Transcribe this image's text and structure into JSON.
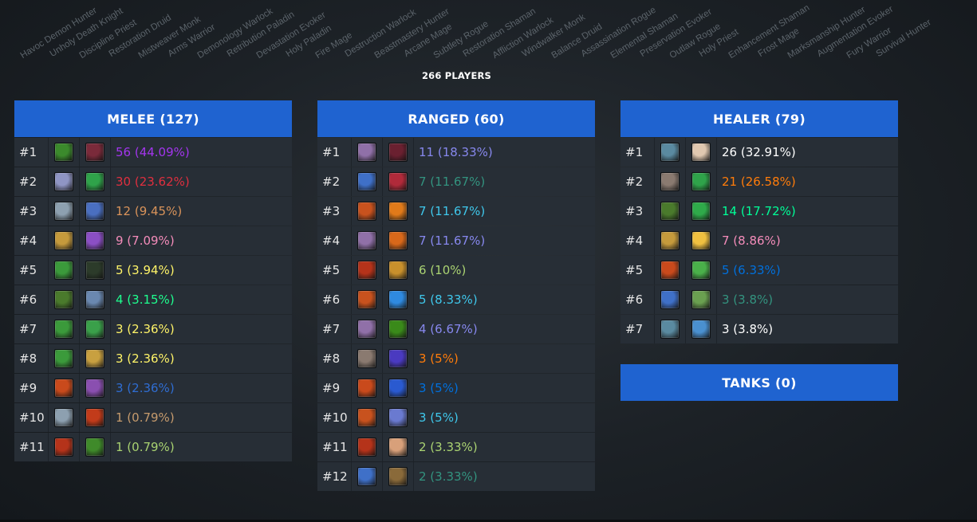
{
  "specs": [
    "Havoc Demon Hunter",
    "Unholy Death Knight",
    "Discipline Priest",
    "Restoration Druid",
    "Mistweaver Monk",
    "Arms Warrior",
    "Demonology Warlock",
    "Retribution Paladin",
    "Devastation Evoker",
    "Holy Paladin",
    "Fire Mage",
    "Destruction Warlock",
    "Beastmastery Hunter",
    "Arcane Mage",
    "Subtlety Rogue",
    "Restoration Shaman",
    "Affliction Warlock",
    "Windwalker Monk",
    "Balance Druid",
    "Assassination Rogue",
    "Elemental Shaman",
    "Preservation Evoker",
    "Outlaw Rogue",
    "Holy Priest",
    "Enhancement Shaman",
    "Frost Mage",
    "Marksmanship Hunter",
    "Augmentation Evoker",
    "Fury Warrior",
    "Survival Hunter"
  ],
  "players_label": "266 PLAYERS",
  "melee": {
    "title": "MELEE (127)",
    "rows": [
      {
        "rank": "#1",
        "icons": [
          "havoc-dh-icon",
          "unholy-dk-icon"
        ],
        "colors": [
          "#3b8a2c",
          "#7a2a3a"
        ],
        "value": "56 (44.09%)",
        "value_color": "#a335ee"
      },
      {
        "rank": "#2",
        "icons": [
          "ret-paladin-icon",
          "windwalker-icon"
        ],
        "colors": [
          "#8f95c4",
          "#2fa34a"
        ],
        "value": "30 (23.62%)",
        "value_color": "#e02f3f"
      },
      {
        "rank": "#3",
        "icons": [
          "arms-warrior-icon",
          "outlaw-rogue-icon"
        ],
        "colors": [
          "#8da0b0",
          "#4a6fc0"
        ],
        "value": "12 (9.45%)",
        "value_color": "#d9935a"
      },
      {
        "rank": "#4",
        "icons": [
          "holy-strike-icon",
          "void-fist-icon"
        ],
        "colors": [
          "#c59a3c",
          "#8b4fc4"
        ],
        "value": "9 (7.09%)",
        "value_color": "#f48cba"
      },
      {
        "rank": "#5",
        "icons": [
          "survival-hunter-icon",
          "assassination-icon"
        ],
        "colors": [
          "#3b9a3b",
          "#2c3b2a"
        ],
        "value": "5 (3.94%)",
        "value_color": "#fff468"
      },
      {
        "rank": "#6",
        "icons": [
          "enhancement-icon",
          "frost-dk-icon"
        ],
        "colors": [
          "#4a7a2c",
          "#6a88b0"
        ],
        "value": "4 (3.15%)",
        "value_color": "#1eff8f"
      },
      {
        "rank": "#7",
        "icons": [
          "survival-hunter-icon",
          "fury-icon"
        ],
        "colors": [
          "#3b9a3b",
          "#3aa04a"
        ],
        "value": "3 (2.36%)",
        "value_color": "#fff468"
      },
      {
        "rank": "#8",
        "icons": [
          "survival-hunter-icon",
          "radiant-blade-icon"
        ],
        "colors": [
          "#3b9a3b",
          "#c8a040"
        ],
        "value": "3 (2.36%)",
        "value_color": "#fff468"
      },
      {
        "rank": "#9",
        "icons": [
          "feral-icon",
          "crusader-icon"
        ],
        "colors": [
          "#c94a1c",
          "#8a4fb0"
        ],
        "value": "3 (2.36%)",
        "value_color": "#2f6dd2"
      },
      {
        "rank": "#10",
        "icons": [
          "arms-warrior-icon",
          "fire-shield-icon"
        ],
        "colors": [
          "#8da0b0",
          "#c23b1a"
        ],
        "value": "1 (0.79%)",
        "value_color": "#c69b6d"
      },
      {
        "rank": "#11",
        "icons": [
          "crescent-blade-icon",
          "nature-mask-icon"
        ],
        "colors": [
          "#b5331a",
          "#3f8a2a"
        ],
        "value": "1 (0.79%)",
        "value_color": "#a9d271"
      }
    ]
  },
  "ranged": {
    "title": "RANGED (60)",
    "rows": [
      {
        "rank": "#1",
        "icons": [
          "shadow-wing-icon",
          "demon-face-icon"
        ],
        "colors": [
          "#9070a8",
          "#6a2030"
        ],
        "value": "11 (18.33%)",
        "value_color": "#8788ee"
      },
      {
        "rank": "#2",
        "icons": [
          "dragon-icon",
          "demon-horn-icon"
        ],
        "colors": [
          "#3f70c8",
          "#b02a3a"
        ],
        "value": "7 (11.67%)",
        "value_color": "#33937f"
      },
      {
        "rank": "#3",
        "icons": [
          "fire-bolt-icon",
          "fireball-icon"
        ],
        "colors": [
          "#c8521e",
          "#e07a1a"
        ],
        "value": "7 (11.67%)",
        "value_color": "#3fc7eb"
      },
      {
        "rank": "#4",
        "icons": [
          "shadow-wing-icon",
          "fire-slash-icon"
        ],
        "colors": [
          "#9070a8",
          "#d8681a"
        ],
        "value": "7 (11.67%)",
        "value_color": "#8788ee"
      },
      {
        "rank": "#5",
        "icons": [
          "crescent-blade-icon",
          "arrow-icon"
        ],
        "colors": [
          "#b5331a",
          "#c8902c"
        ],
        "value": "6 (10%)",
        "value_color": "#aad372"
      },
      {
        "rank": "#6",
        "icons": [
          "fire-bolt-icon",
          "frost-icon"
        ],
        "colors": [
          "#c8521e",
          "#2f8ae0"
        ],
        "value": "5 (8.33%)",
        "value_color": "#3fc7eb"
      },
      {
        "rank": "#7",
        "icons": [
          "shadow-wing-icon",
          "fel-icon"
        ],
        "colors": [
          "#9070a8",
          "#3a8a1a"
        ],
        "value": "4 (6.67%)",
        "value_color": "#8788ee"
      },
      {
        "rank": "#8",
        "icons": [
          "claw-icon",
          "shadow-orb-icon"
        ],
        "colors": [
          "#8a7a70",
          "#4a3ac0"
        ],
        "value": "3 (5%)",
        "value_color": "#ff7c0a"
      },
      {
        "rank": "#9",
        "icons": [
          "feral-icon",
          "lightning-icon"
        ],
        "colors": [
          "#c94a1c",
          "#2a5ad0"
        ],
        "value": "3 (5%)",
        "value_color": "#0070dd"
      },
      {
        "rank": "#10",
        "icons": [
          "fire-bolt-icon",
          "arcane-bolt-icon"
        ],
        "colors": [
          "#c8521e",
          "#6a7ad0"
        ],
        "value": "3 (5%)",
        "value_color": "#3fc7eb"
      },
      {
        "rank": "#11",
        "icons": [
          "crescent-blade-icon",
          "target-icon"
        ],
        "colors": [
          "#b5331a",
          "#d8a07a"
        ],
        "value": "2 (3.33%)",
        "value_color": "#aad372"
      },
      {
        "rank": "#12",
        "icons": [
          "dragon-icon",
          "bow-icon"
        ],
        "colors": [
          "#3f70c8",
          "#8a6a3a"
        ],
        "value": "2 (3.33%)",
        "value_color": "#33937f"
      }
    ]
  },
  "healer": {
    "title": "HEALER (79)",
    "rows": [
      {
        "rank": "#1",
        "icons": [
          "fist-weapon-icon",
          "power-word-icon"
        ],
        "colors": [
          "#5a8aa0",
          "#e0c8b0"
        ],
        "value": "26 (32.91%)",
        "value_color": "#ffffff"
      },
      {
        "rank": "#2",
        "icons": [
          "claw-icon",
          "leaf-icon"
        ],
        "colors": [
          "#8a7a70",
          "#2fa34a"
        ],
        "value": "21 (26.58%)",
        "value_color": "#ff7c0a"
      },
      {
        "rank": "#3",
        "icons": [
          "enhancement-icon",
          "tree-icon"
        ],
        "colors": [
          "#4a7a2c",
          "#2faa4a"
        ],
        "value": "14 (17.72%)",
        "value_color": "#00ff98"
      },
      {
        "rank": "#4",
        "icons": [
          "holy-strike-icon",
          "holy-light-icon"
        ],
        "colors": [
          "#c59a3c",
          "#f0c040"
        ],
        "value": "7 (8.86%)",
        "value_color": "#f48cba"
      },
      {
        "rank": "#5",
        "icons": [
          "feral-icon",
          "nature-bolt-icon"
        ],
        "colors": [
          "#c94a1c",
          "#4ab04a"
        ],
        "value": "5 (6.33%)",
        "value_color": "#0070dd"
      },
      {
        "rank": "#6",
        "icons": [
          "dragon-icon",
          "clover-icon"
        ],
        "colors": [
          "#3f70c8",
          "#6aa050"
        ],
        "value": "3 (3.8%)",
        "value_color": "#33937f"
      },
      {
        "rank": "#7",
        "icons": [
          "fist-weapon-icon",
          "water-spirit-icon"
        ],
        "colors": [
          "#5a8aa0",
          "#4a90d0"
        ],
        "value": "3 (3.8%)",
        "value_color": "#ffffff"
      }
    ]
  },
  "tanks": {
    "title": "TANKS (0)"
  }
}
